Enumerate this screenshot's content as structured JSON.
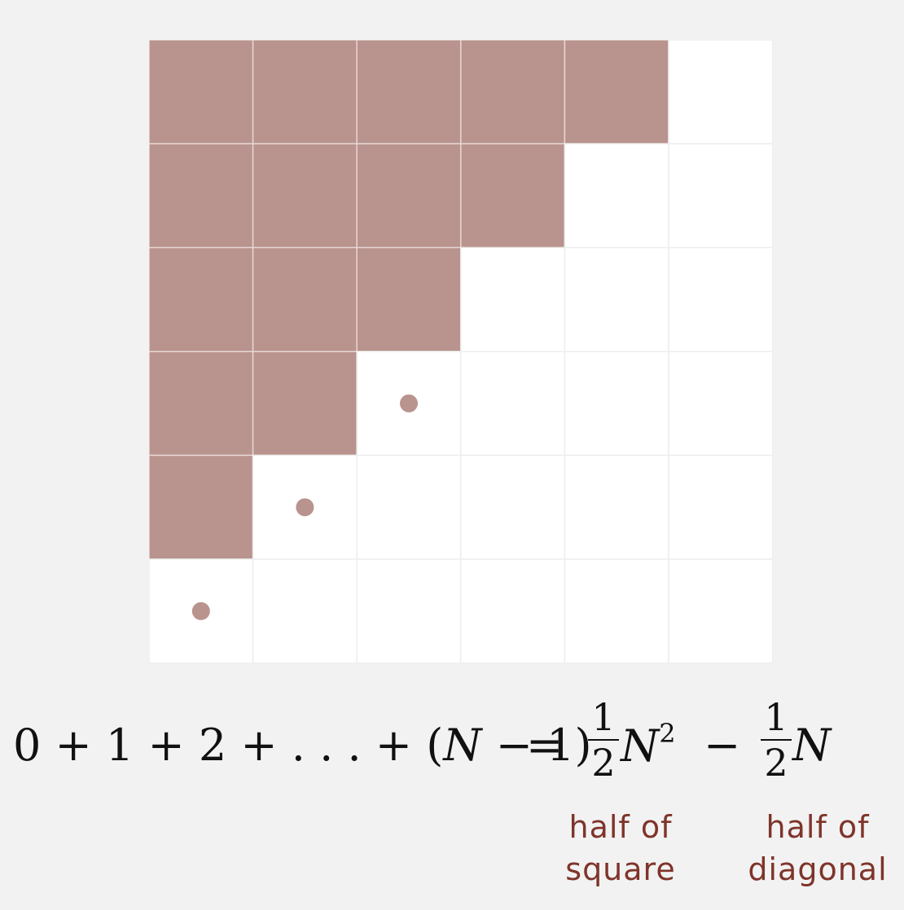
{
  "colors": {
    "background": "#f2f2f2",
    "filled": "#b9938d",
    "empty": "#ffffff",
    "grid_line": "#eeeeee",
    "dot": "#b9938d",
    "label": "#7f342a"
  },
  "grid": {
    "n": 6,
    "filled_per_row": [
      5,
      4,
      3,
      2,
      1,
      0
    ],
    "dots": [
      {
        "row": 3,
        "col": 2
      },
      {
        "row": 4,
        "col": 1
      },
      {
        "row": 5,
        "col": 0
      }
    ]
  },
  "equation": {
    "lhs_a": "0 + 1 + 2 + . . . + (",
    "lhs_var": "N",
    "lhs_b": " − 1)",
    "equals": "=",
    "frac1_num": "1",
    "frac1_den": "2",
    "term1_var": "N",
    "term1_exp": "2",
    "minus": "−",
    "frac2_num": "1",
    "frac2_den": "2",
    "term2_var": "N"
  },
  "labels": {
    "square_line1": "half of",
    "square_line2": "square",
    "diagonal_line1": "half of",
    "diagonal_line2": "diagonal"
  }
}
